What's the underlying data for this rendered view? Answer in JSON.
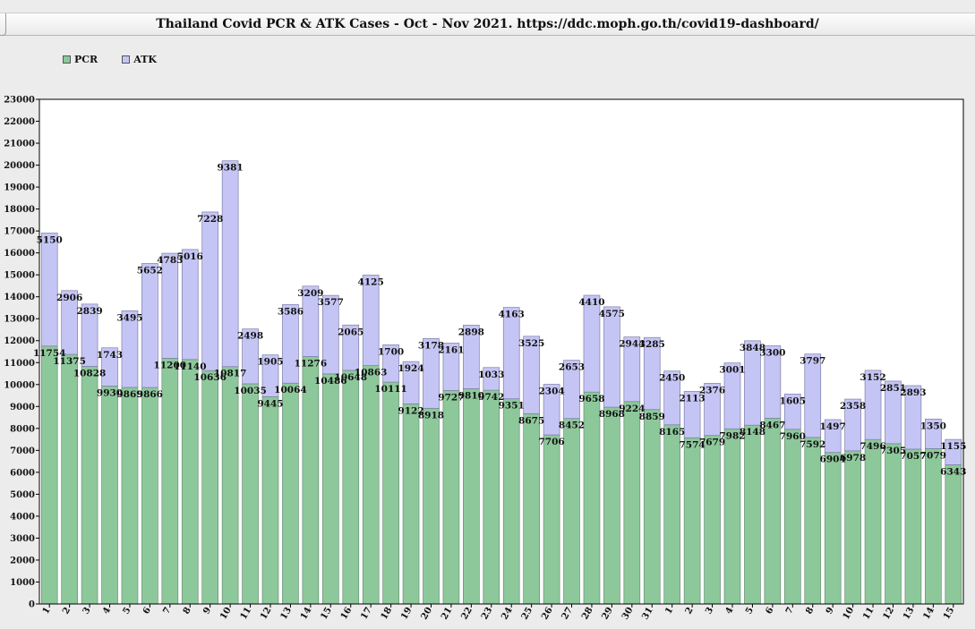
{
  "chart_data": {
    "type": "bar",
    "stacked": true,
    "title": "Thailand Covid PCR & ATK Cases - Oct - Nov 2021. https://ddc.moph.go.th/covid19-dashboard/",
    "categories": [
      "1",
      "2",
      "3",
      "4",
      "5",
      "6",
      "7",
      "8",
      "9",
      "10",
      "11",
      "12",
      "13",
      "14",
      "15",
      "16",
      "17",
      "18",
      "19",
      "20",
      "21",
      "22",
      "23",
      "24",
      "25",
      "26",
      "27",
      "28",
      "29",
      "30",
      "31",
      "1",
      "2",
      "3",
      "4",
      "5",
      "6",
      "7",
      "8",
      "9",
      "10",
      "11",
      "12",
      "13",
      "14",
      "15"
    ],
    "series": [
      {
        "name": "PCR",
        "color": "#8dc89b",
        "values": [
          11754,
          11375,
          10828,
          9930,
          9869,
          9866,
          11200,
          11140,
          10636,
          10817,
          10035,
          9445,
          10064,
          11276,
          10486,
          10648,
          10863,
          10111,
          9122,
          8918,
          9727,
          9810,
          9742,
          9351,
          8675,
          7706,
          8452,
          9658,
          8968,
          9224,
          8859,
          8165,
          7574,
          7679,
          7982,
          8148,
          8467,
          7960,
          7592,
          6904,
          6978,
          7496,
          7305,
          7057,
          7079,
          6343
        ]
      },
      {
        "name": "ATK",
        "color": "#c5c5f5",
        "values": [
          5150,
          2906,
          2839,
          1743,
          3495,
          5652,
          4783,
          5016,
          7228,
          9381,
          2498,
          1905,
          3586,
          3209,
          3577,
          2065,
          4125,
          1700,
          1924,
          3178,
          2161,
          2898,
          1033,
          4163,
          3525,
          2304,
          2653,
          4410,
          4575,
          2944,
          3285,
          2450,
          2113,
          2376,
          3001,
          3848,
          3300,
          1605,
          3797,
          1497,
          2358,
          3152,
          2851,
          2893,
          1350,
          1155
        ]
      }
    ],
    "ylim": [
      0,
      23000
    ],
    "yticks": [
      0,
      1000,
      2000,
      3000,
      4000,
      5000,
      6000,
      7000,
      8000,
      9000,
      10000,
      11000,
      12000,
      13000,
      14000,
      15000,
      16000,
      17000,
      18000,
      19000,
      20000,
      21000,
      22000,
      23000
    ],
    "legend_position": "top-left",
    "grid": false
  }
}
